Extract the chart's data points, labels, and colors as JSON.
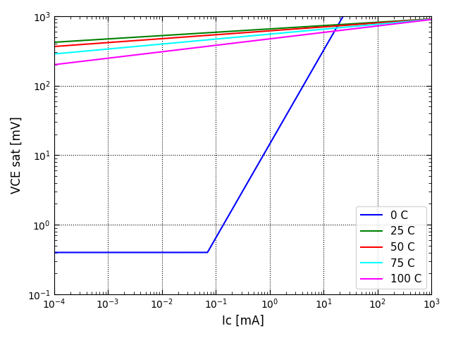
{
  "xlabel": "Ic [mA]",
  "ylabel": "VCE sat [mV]",
  "legend_loc": "lower right",
  "legend_fontsize": 11,
  "linewidth": 1.5,
  "curves": [
    {
      "label": "0 C",
      "color": "blue",
      "type": "blue",
      "V_flat": 0.4,
      "Ic_knee": 0.07,
      "alpha": 1.35,
      "V_scale": 1.35
    },
    {
      "label": "25 C",
      "color": "green",
      "type": "power",
      "V_at_low": 420,
      "V_at_high": 910,
      "Ic_low": 0.0001,
      "Ic_high": 1000.0
    },
    {
      "label": "50 C",
      "color": "red",
      "type": "power",
      "V_at_low": 365,
      "V_at_high": 905,
      "Ic_low": 0.0001,
      "Ic_high": 1000.0
    },
    {
      "label": "75 C",
      "color": "cyan",
      "type": "power",
      "V_at_low": 285,
      "V_at_high": 900,
      "Ic_low": 0.0001,
      "Ic_high": 1000.0
    },
    {
      "label": "100 C",
      "color": "magenta",
      "type": "power",
      "V_at_low": 200,
      "V_at_high": 893,
      "Ic_low": 0.0001,
      "Ic_high": 1000.0
    }
  ]
}
